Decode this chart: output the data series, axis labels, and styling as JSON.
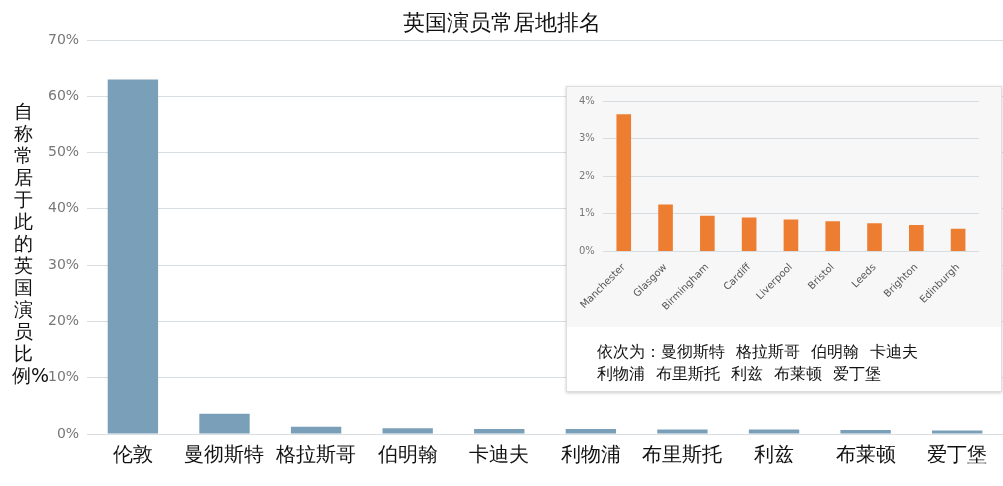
{
  "chart_data": [
    {
      "type": "bar",
      "title": "英国演员常居地排名",
      "ylabel": "自称常居于此的英国演员比例%",
      "categories": [
        "伦敦",
        "曼彻斯特",
        "格拉斯哥",
        "伯明翰",
        "卡迪夫",
        "利物浦",
        "布里斯托",
        "利兹",
        "布莱顿",
        "爱丁堡"
      ],
      "values": [
        63,
        3.6,
        1.3,
        1.0,
        0.9,
        0.9,
        0.8,
        0.8,
        0.7,
        0.6
      ],
      "color": "#7a9fb8",
      "ylim": [
        0,
        70
      ],
      "yticks": [
        {
          "value": 0,
          "label": "0%"
        },
        {
          "value": 10,
          "label": "10%"
        },
        {
          "value": 20,
          "label": "20%"
        },
        {
          "value": 30,
          "label": "30%"
        },
        {
          "value": 40,
          "label": "40%"
        },
        {
          "value": 50,
          "label": "50%"
        },
        {
          "value": 60,
          "label": "60%"
        },
        {
          "value": 70,
          "label": "70%"
        }
      ],
      "grid": "y"
    },
    {
      "type": "bar",
      "categories": [
        "Manchester",
        "Glasgow",
        "Birmingham",
        "Cardiff",
        "Liverpool",
        "Bristol",
        "Leeds",
        "Brighton",
        "Edinburgh"
      ],
      "values": [
        3.65,
        1.25,
        0.95,
        0.9,
        0.85,
        0.8,
        0.75,
        0.7,
        0.6
      ],
      "color": "#ed7d31",
      "ylim": [
        0,
        4
      ],
      "yticks": [
        {
          "value": 0,
          "label": "0%"
        },
        {
          "value": 1,
          "label": "1%"
        },
        {
          "value": 2,
          "label": "2%"
        },
        {
          "value": 3,
          "label": "3%"
        },
        {
          "value": 4,
          "label": "4%"
        }
      ],
      "grid": "y",
      "annotations": [
        "依次为：曼彻斯特 格拉斯哥 伯明翰 卡迪夫",
        "利物浦 布里斯托 利兹 布莱顿 爱丁堡"
      ]
    }
  ]
}
